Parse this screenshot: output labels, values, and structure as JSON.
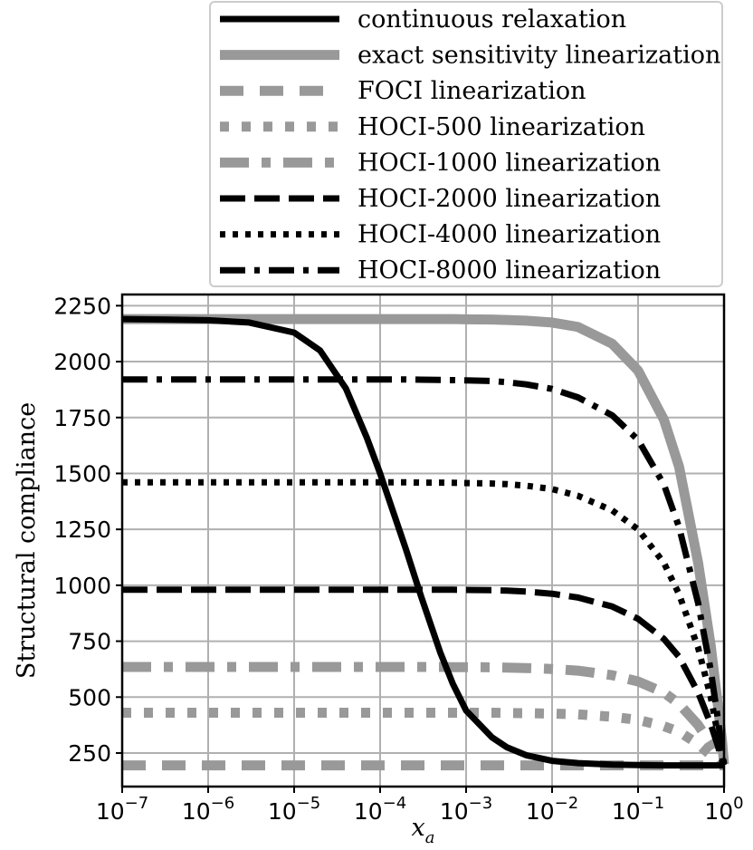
{
  "chart_data": {
    "type": "line",
    "xlabel": "x",
    "xlabel_sub": "a",
    "ylabel": "Structural compliance",
    "x_scale": "log",
    "xlim": [
      1e-07,
      1
    ],
    "ylim": [
      100,
      2300
    ],
    "grid": true,
    "legend_position": "top-right",
    "x_ticks": [
      {
        "value": 1e-07,
        "base": "10",
        "exp": "−7"
      },
      {
        "value": 1e-06,
        "base": "10",
        "exp": "−6"
      },
      {
        "value": 1e-05,
        "base": "10",
        "exp": "−5"
      },
      {
        "value": 0.0001,
        "base": "10",
        "exp": "−4"
      },
      {
        "value": 0.001,
        "base": "10",
        "exp": "−3"
      },
      {
        "value": 0.01,
        "base": "10",
        "exp": "−2"
      },
      {
        "value": 0.1,
        "base": "10",
        "exp": "−1"
      },
      {
        "value": 1,
        "base": "10",
        "exp": "0"
      }
    ],
    "y_ticks": [
      250,
      500,
      750,
      1000,
      1250,
      1500,
      1750,
      2000,
      2250
    ],
    "x": [
      1e-07,
      3e-07,
      1e-06,
      3e-06,
      1e-05,
      2e-05,
      4e-05,
      7e-05,
      0.0001,
      0.0002,
      0.0003,
      0.0005,
      0.0007,
      0.001,
      0.002,
      0.003,
      0.005,
      0.01,
      0.02,
      0.05,
      0.1,
      0.2,
      0.3,
      0.5,
      0.7,
      0.85,
      0.95,
      1
    ],
    "series": [
      {
        "name": "continuous relaxation",
        "color": "#000000",
        "dash": "solid",
        "values": [
          2190,
          2188,
          2185,
          2175,
          2130,
          2050,
          1880,
          1660,
          1500,
          1160,
          950,
          700,
          560,
          440,
          320,
          275,
          240,
          215,
          205,
          198,
          196,
          195,
          195,
          195,
          195,
          195,
          195,
          195
        ]
      },
      {
        "name": "exact sensitivity linearization",
        "color": "#999999",
        "dash": "solid",
        "values": [
          2190,
          2190,
          2190,
          2190,
          2190,
          2190,
          2190,
          2190,
          2190,
          2190,
          2190,
          2190,
          2190,
          2189,
          2188,
          2186,
          2183,
          2175,
          2155,
          2080,
          1960,
          1740,
          1530,
          1100,
          730,
          460,
          300,
          200
        ]
      },
      {
        "name": "FOCI linearization",
        "color": "#999999",
        "dash": "longdash",
        "values": [
          195,
          195,
          195,
          195,
          195,
          195,
          195,
          195,
          195,
          195,
          195,
          195,
          195,
          195,
          195,
          195,
          195,
          195,
          195,
          195,
          195,
          195,
          195,
          195,
          195,
          195,
          195,
          195
        ]
      },
      {
        "name": "HOCI-500 linearization",
        "color": "#999999",
        "dash": "dotted",
        "values": [
          430,
          430,
          430,
          430,
          430,
          430,
          430,
          430,
          430,
          430,
          430,
          430,
          430,
          430,
          430,
          429,
          428,
          426,
          423,
          412,
          398,
          370,
          345,
          290,
          240,
          215,
          202,
          195
        ]
      },
      {
        "name": "HOCI-1000 linearization",
        "color": "#999999",
        "dash": "dashdot",
        "values": [
          635,
          635,
          635,
          635,
          635,
          635,
          635,
          635,
          635,
          635,
          635,
          635,
          634,
          634,
          633,
          632,
          630,
          626,
          618,
          598,
          570,
          520,
          470,
          375,
          290,
          235,
          205,
          195
        ]
      },
      {
        "name": "HOCI-2000 linearization",
        "color": "#000000",
        "dash": "dashed",
        "values": [
          980,
          980,
          980,
          980,
          980,
          980,
          980,
          980,
          980,
          980,
          980,
          980,
          980,
          979,
          978,
          976,
          972,
          962,
          945,
          905,
          850,
          760,
          680,
          520,
          380,
          280,
          215,
          195
        ]
      },
      {
        "name": "HOCI-4000 linearization",
        "color": "#000000",
        "dash": "densedot",
        "values": [
          1460,
          1460,
          1460,
          1460,
          1460,
          1460,
          1460,
          1460,
          1460,
          1460,
          1459,
          1459,
          1458,
          1457,
          1455,
          1452,
          1445,
          1430,
          1400,
          1335,
          1250,
          1100,
          960,
          720,
          500,
          330,
          230,
          195
        ]
      },
      {
        "name": "HOCI-8000 linearization",
        "color": "#000000",
        "dash": "dashdot",
        "values": [
          1920,
          1920,
          1920,
          1920,
          1920,
          1920,
          1920,
          1920,
          1920,
          1920,
          1919,
          1918,
          1917,
          1916,
          1913,
          1908,
          1898,
          1878,
          1840,
          1760,
          1650,
          1450,
          1260,
          920,
          620,
          400,
          260,
          200
        ]
      }
    ]
  }
}
